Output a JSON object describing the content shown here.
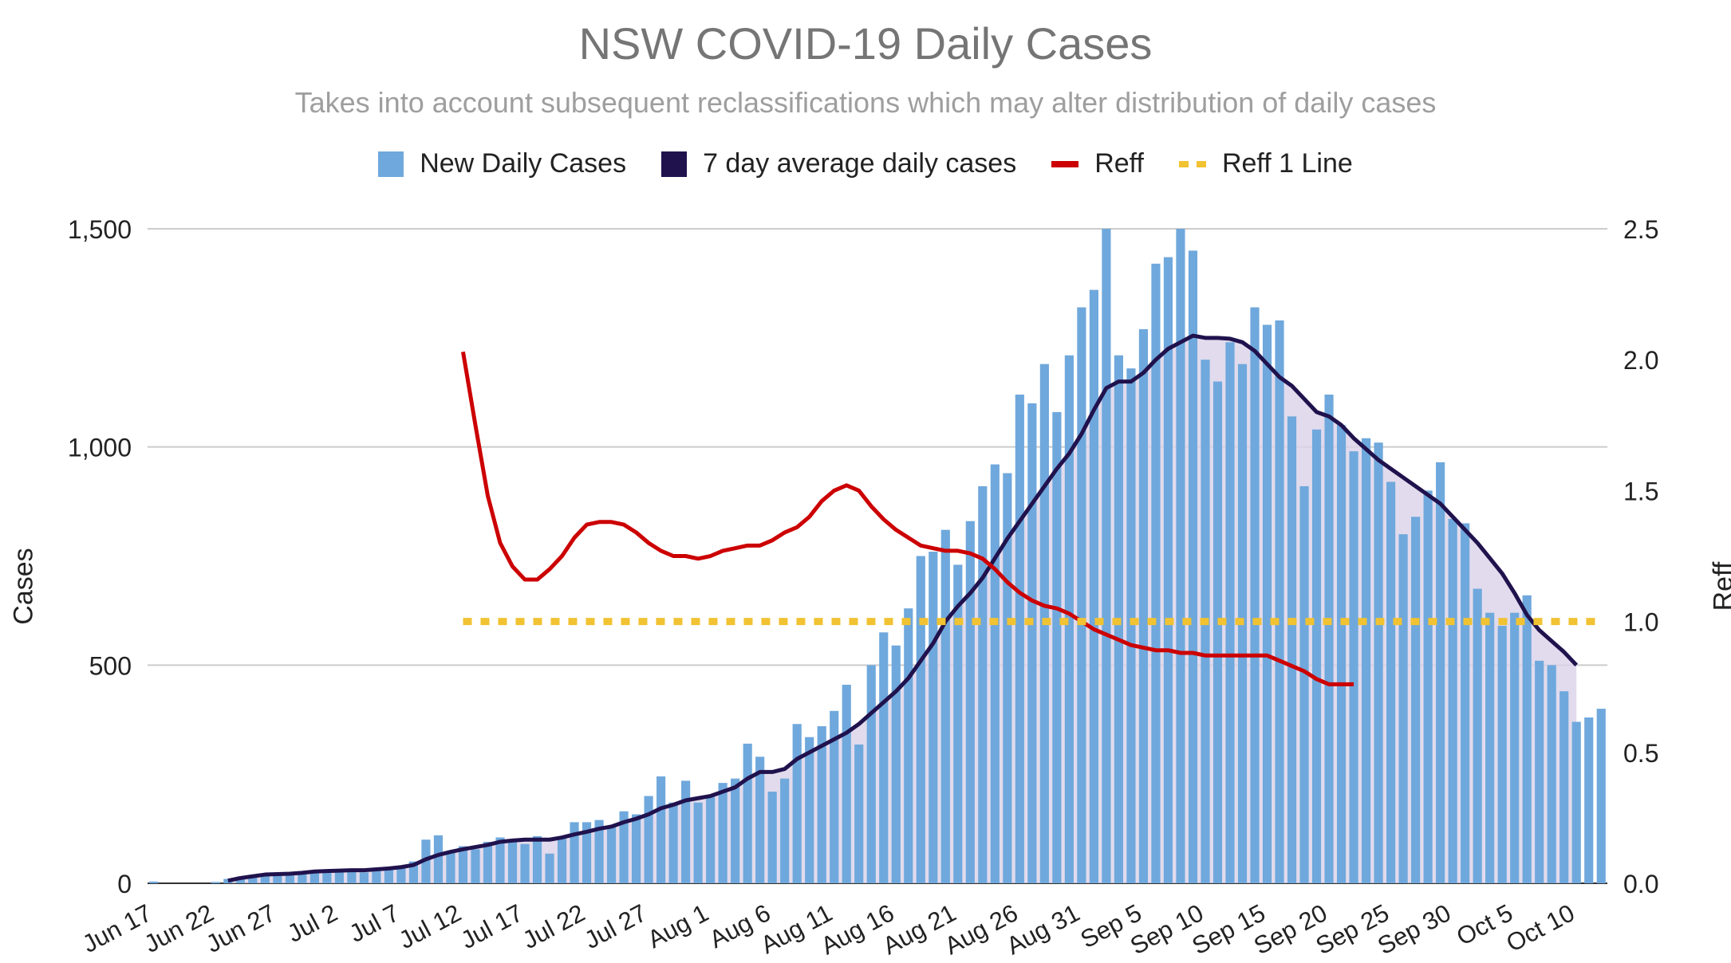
{
  "title": "NSW COVID-19 Daily Cases",
  "subtitle": "Takes into account subsequent reclassifications which may alter distribution of daily cases",
  "colors": {
    "bars": "#6fa8dc",
    "avg": "#20124d",
    "avg_fill": "#d9d2e9",
    "reff": "#cc0000",
    "reff1": "#f1c232",
    "grid": "#cccccc",
    "text": "#222222"
  },
  "chart_data": {
    "type": "bar",
    "start_date": "Jun 17",
    "x_tick_labels": [
      "Jun 17",
      "Jun 22",
      "Jun 27",
      "Jul 2",
      "Jul 7",
      "Jul 12",
      "Jul 17",
      "Jul 22",
      "Jul 27",
      "Aug 1",
      "Aug 6",
      "Aug 11",
      "Aug 16",
      "Aug 21",
      "Aug 26",
      "Aug 31",
      "Sep 5",
      "Sep 10",
      "Sep 15",
      "Sep 20",
      "Sep 25",
      "Sep 30",
      "Oct 5",
      "Oct 10"
    ],
    "ylabel": "Cases",
    "y2label": "Reff",
    "ylim": [
      0,
      1500
    ],
    "y_ticks": [
      "0",
      "500",
      "1,000",
      "1,500"
    ],
    "y2lim": [
      0,
      2.5
    ],
    "y2_ticks": [
      "0.0",
      "0.5",
      "1.0",
      "1.5",
      "2.0",
      "2.5"
    ],
    "legend_position": "top",
    "series": [
      {
        "name": "New Daily Cases",
        "type": "bar",
        "values": [
          4,
          0,
          0,
          0,
          0,
          3,
          10,
          15,
          18,
          22,
          20,
          22,
          25,
          28,
          25,
          30,
          28,
          25,
          28,
          35,
          40,
          50,
          100,
          110,
          70,
          85,
          78,
          95,
          105,
          98,
          90,
          108,
          68,
          102,
          140,
          140,
          145,
          130,
          165,
          158,
          200,
          245,
          185,
          235,
          185,
          198,
          230,
          240,
          320,
          290,
          210,
          240,
          365,
          335,
          360,
          395,
          455,
          318,
          500,
          575,
          545,
          630,
          750,
          760,
          810,
          730,
          830,
          910,
          960,
          940,
          1120,
          1100,
          1190,
          1080,
          1210,
          1320,
          1360,
          1500,
          1210,
          1180,
          1270,
          1420,
          1435,
          1500,
          1450,
          1200,
          1150,
          1240,
          1190,
          1320,
          1280,
          1290,
          1070,
          910,
          1040,
          1120,
          1050,
          990,
          1020,
          1010,
          920,
          800,
          840,
          900,
          965,
          835,
          825,
          675,
          620,
          590,
          620,
          660,
          510,
          500,
          440,
          370,
          380,
          400
        ]
      },
      {
        "name": "7 day average daily cases",
        "type": "line",
        "values": [
          null,
          null,
          null,
          null,
          null,
          null,
          6,
          12,
          16,
          20,
          21,
          22,
          24,
          27,
          28,
          29,
          30,
          30,
          32,
          34,
          37,
          42,
          55,
          65,
          72,
          78,
          83,
          88,
          95,
          98,
          100,
          100,
          100,
          105,
          112,
          118,
          125,
          130,
          140,
          148,
          158,
          172,
          180,
          190,
          195,
          200,
          210,
          220,
          240,
          255,
          255,
          262,
          285,
          300,
          315,
          330,
          345,
          365,
          390,
          415,
          440,
          470,
          510,
          550,
          600,
          635,
          665,
          700,
          745,
          790,
          830,
          870,
          910,
          950,
          985,
          1030,
          1085,
          1135,
          1150,
          1150,
          1170,
          1200,
          1225,
          1240,
          1255,
          1250,
          1250,
          1248,
          1240,
          1220,
          1190,
          1160,
          1140,
          1110,
          1080,
          1070,
          1050,
          1020,
          995,
          970,
          950,
          930,
          910,
          890,
          870,
          840,
          810,
          780,
          745,
          710,
          665,
          615,
          580,
          555,
          530,
          500
        ]
      },
      {
        "name": "Reff",
        "type": "line",
        "axis": "right",
        "values": [
          null,
          null,
          null,
          null,
          null,
          null,
          null,
          null,
          null,
          null,
          null,
          null,
          null,
          null,
          null,
          null,
          null,
          null,
          null,
          null,
          null,
          null,
          null,
          null,
          null,
          2.03,
          1.75,
          1.48,
          1.3,
          1.21,
          1.16,
          1.16,
          1.2,
          1.25,
          1.32,
          1.37,
          1.38,
          1.38,
          1.37,
          1.34,
          1.3,
          1.27,
          1.25,
          1.25,
          1.24,
          1.25,
          1.27,
          1.28,
          1.29,
          1.29,
          1.31,
          1.34,
          1.36,
          1.4,
          1.46,
          1.5,
          1.52,
          1.5,
          1.44,
          1.39,
          1.35,
          1.32,
          1.29,
          1.28,
          1.27,
          1.27,
          1.26,
          1.24,
          1.2,
          1.15,
          1.11,
          1.08,
          1.06,
          1.05,
          1.03,
          1.0,
          0.97,
          0.95,
          0.93,
          0.91,
          0.9,
          0.89,
          0.89,
          0.88,
          0.88,
          0.87,
          0.87,
          0.87,
          0.87,
          0.87,
          0.87,
          0.85,
          0.83,
          0.81,
          0.78,
          0.76,
          0.76,
          0.76
        ]
      },
      {
        "name": "Reff 1 Line",
        "type": "line",
        "axis": "right",
        "style": "dotted",
        "start_index": 25,
        "value": 1.0
      }
    ]
  }
}
